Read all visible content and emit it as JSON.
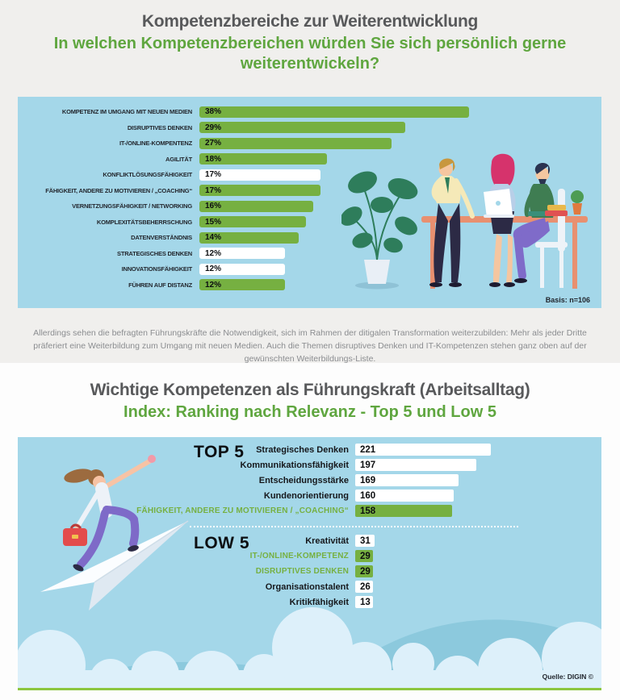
{
  "section1": {
    "title": "Kompetenzbereiche zur Weiterentwicklung",
    "subtitle": "In welchen Kompetenzbereichen würden Sie sich persönlich gerne weiterentwickeln?",
    "basis_note": "Basis: n=106",
    "paragraph": "Allerdings sehen die befragten Führungskräfte die Notwendigkeit, sich im Rahmen der ditigalen Transformation weiterzubilden: Mehr als jeder Dritte präferiert eine Weiterbildung zum Umgang mit neuen Medien. Auch die Themen disruptives Denken und IT-Kompetenzen stehen ganz oben auf der gewünschten Weiterbildungs-Liste."
  },
  "section2": {
    "title": "Wichtige Kompetenzen als Führungskraft (Arbeitsalltag)",
    "subtitle": "Index: Ranking nach Relevanz - Top 5 und Low 5",
    "source_note": "Quelle: DIGIN ©"
  },
  "colors": {
    "green_bar": "#76b041",
    "white_bar": "#ffffff",
    "panel_blue": "#a4d7e9",
    "title_gray": "#58595b",
    "green_text": "#5fa63f",
    "bottom_line_green": "#8cc63e"
  },
  "icons": {
    "office_scene": "office-scene-illustration",
    "paper_plane_woman": "paper-plane-illustration",
    "clouds": "clouds-illustration"
  },
  "chart_data": [
    {
      "type": "bar",
      "orientation": "horizontal",
      "title": "In welchen Kompetenzbereichen würden Sie sich persönlich gerne weiterentwickeln?",
      "value_suffix": "%",
      "basis": "n=106",
      "xlim": [
        0,
        40
      ],
      "grid": false,
      "rows": [
        {
          "label": "KOMPETENZ IM UMGANG MIT NEUEN MEDIEN",
          "value": 38,
          "display": "38%",
          "style": "green"
        },
        {
          "label": "DISRUPTIVES DENKEN",
          "value": 29,
          "display": "29%",
          "style": "green"
        },
        {
          "label": "IT-/ONLINE-KOMPENTENZ",
          "value": 27,
          "display": "27%",
          "style": "green"
        },
        {
          "label": "AGILITÄT",
          "value": 18,
          "display": "18%",
          "style": "green"
        },
        {
          "label": "KONFLIKTLÖSUNGSFÄHIGKEIT",
          "value": 17,
          "display": "17%",
          "style": "white"
        },
        {
          "label": "FÄHIGKEIT, ANDERE ZU MOTIVIEREN / „COACHING“",
          "value": 17,
          "display": "17%",
          "style": "green"
        },
        {
          "label": "VERNETZUNGSFÄHIGKEIT / NETWORKING",
          "value": 16,
          "display": "16%",
          "style": "green"
        },
        {
          "label": "KOMPLEXITÄTSBEHERRSCHUNG",
          "value": 15,
          "display": "15%",
          "style": "green"
        },
        {
          "label": "DATENVERSTÄNDNIS",
          "value": 14,
          "display": "14%",
          "style": "green"
        },
        {
          "label": "STRATEGISCHES DENKEN",
          "value": 12,
          "display": "12%",
          "style": "white"
        },
        {
          "label": "INNOVATIONSFÄHIGKEIT",
          "value": 12,
          "display": "12%",
          "style": "white"
        },
        {
          "label": "FÜHREN AUF DISTANZ",
          "value": 12,
          "display": "12%",
          "style": "green"
        }
      ]
    },
    {
      "type": "bar",
      "orientation": "horizontal",
      "title": "Index: Ranking nach Relevanz - Top 5 und Low 5",
      "xlim": [
        0,
        240
      ],
      "grid": false,
      "groups": [
        {
          "heading": "TOP 5",
          "rows": [
            {
              "label": "Strategisches Denken",
              "value": 221,
              "display": "221",
              "style": "white"
            },
            {
              "label": "Kommunikationsfähigkeit",
              "value": 197,
              "display": "197",
              "style": "white"
            },
            {
              "label": "Entscheidungsstärke",
              "value": 169,
              "display": "169",
              "style": "white"
            },
            {
              "label": "Kundenorientierung",
              "value": 160,
              "display": "160",
              "style": "white"
            },
            {
              "label": "FÄHIGKEIT, ANDERE ZU MOTIVIEREN / „COACHING“",
              "value": 158,
              "display": "158",
              "style": "green",
              "highlight": true
            }
          ]
        },
        {
          "heading": "LOW 5",
          "rows": [
            {
              "label": "Kreativität",
              "value": 31,
              "display": "31",
              "style": "white"
            },
            {
              "label": "IT-/ONLINE-KOMPETENZ",
              "value": 29,
              "display": "29",
              "style": "green",
              "highlight": true
            },
            {
              "label": "DISRUPTIVES DENKEN",
              "value": 29,
              "display": "29",
              "style": "green",
              "highlight": true
            },
            {
              "label": "Organisationstalent",
              "value": 26,
              "display": "26",
              "style": "white"
            },
            {
              "label": "Kritikfähigkeit",
              "value": 13,
              "display": "13",
              "style": "white"
            }
          ]
        }
      ]
    }
  ]
}
